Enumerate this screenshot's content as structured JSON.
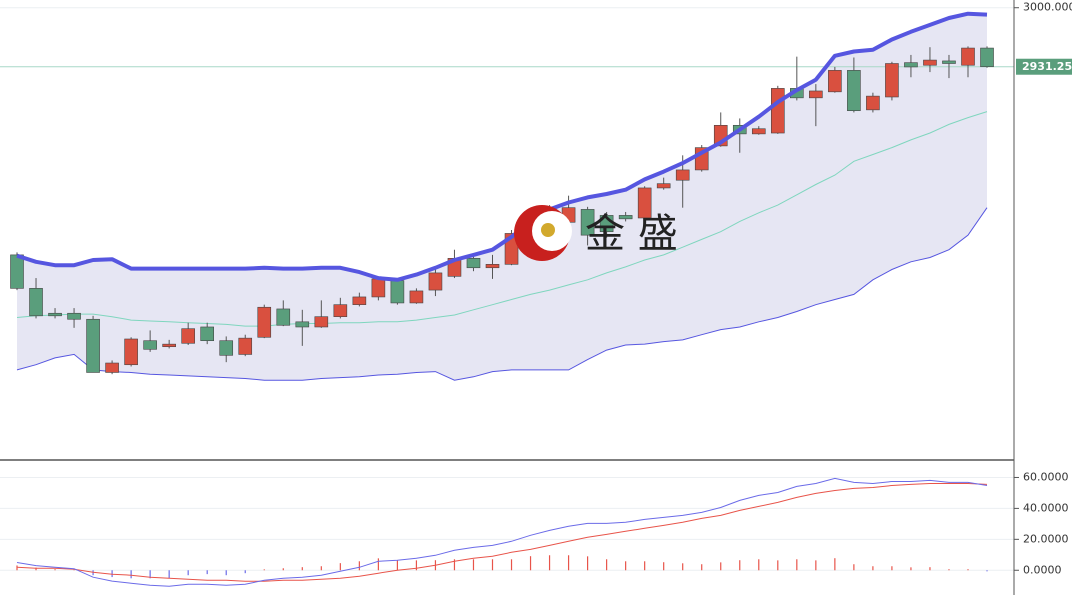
{
  "chart_data": [
    {
      "type": "candlestick",
      "ylim": [
        2473,
        3009
      ],
      "yticks": [
        {
          "value": 3000,
          "label": "3000.0000"
        }
      ],
      "grid": true,
      "up_color": "#d9503f",
      "down_color": "#5a9e7c",
      "open": [
        2712,
        2673,
        2644,
        2644,
        2637,
        2575,
        2584,
        2612,
        2605,
        2609,
        2628,
        2612,
        2596,
        2616,
        2649,
        2634,
        2628,
        2640,
        2654,
        2663,
        2682,
        2656,
        2671,
        2687,
        2708,
        2697,
        2701,
        2737,
        2747,
        2750,
        2765,
        2758,
        2758,
        2755,
        2790,
        2799,
        2811,
        2839,
        2863,
        2853,
        2854,
        2906,
        2895,
        2902,
        2927,
        2881,
        2896,
        2936,
        2933,
        2938,
        2933,
        2953
      ],
      "high": [
        2715,
        2685,
        2650,
        2650,
        2641,
        2589,
        2616,
        2624,
        2613,
        2633,
        2633,
        2617,
        2619,
        2654,
        2659,
        2648,
        2659,
        2662,
        2668,
        2687,
        2685,
        2673,
        2697,
        2718,
        2713,
        2712,
        2741,
        2758,
        2770,
        2781,
        2768,
        2762,
        2762,
        2792,
        2802,
        2828,
        2840,
        2878,
        2871,
        2862,
        2909,
        2943,
        2911,
        2931,
        2942,
        2901,
        2937,
        2945,
        2954,
        2945,
        2955,
        2955
      ],
      "low": [
        2671,
        2638,
        2638,
        2627,
        2575,
        2573,
        2582,
        2599,
        2603,
        2607,
        2608,
        2587,
        2594,
        2615,
        2629,
        2606,
        2627,
        2638,
        2652,
        2659,
        2654,
        2655,
        2664,
        2685,
        2693,
        2684,
        2700,
        2735,
        2743,
        2746,
        2723,
        2732,
        2751,
        2754,
        2788,
        2767,
        2809,
        2838,
        2831,
        2852,
        2853,
        2892,
        2862,
        2901,
        2878,
        2878,
        2892,
        2919,
        2925,
        2918,
        2919,
        2930
      ],
      "close": [
        2673,
        2641,
        2641,
        2637,
        2575,
        2586,
        2614,
        2602,
        2608,
        2626,
        2612,
        2595,
        2615,
        2651,
        2630,
        2628,
        2640,
        2654,
        2663,
        2684,
        2656,
        2670,
        2691,
        2708,
        2697,
        2701,
        2737,
        2753,
        2764,
        2767,
        2735,
        2739,
        2754,
        2790,
        2795,
        2811,
        2837,
        2863,
        2853,
        2859,
        2906,
        2895,
        2903,
        2927,
        2880,
        2897,
        2935,
        2931,
        2939,
        2935,
        2953,
        2931.25
      ],
      "bands": {
        "upper": [
          2711,
          2704,
          2700,
          2700,
          2706,
          2707,
          2696,
          2696,
          2696,
          2696,
          2696,
          2696,
          2696,
          2697,
          2696,
          2696,
          2697,
          2697,
          2692,
          2685,
          2683,
          2689,
          2697,
          2706,
          2712,
          2718,
          2733,
          2751,
          2765,
          2773,
          2779,
          2783,
          2788,
          2800,
          2809,
          2819,
          2831,
          2843,
          2858,
          2873,
          2890,
          2904,
          2916,
          2944,
          2949,
          2951,
          2963,
          2972,
          2980,
          2988,
          2993,
          2992
        ],
        "middle": [
          2639,
          2641,
          2642,
          2643,
          2643,
          2640,
          2636,
          2635,
          2634,
          2633,
          2632,
          2631,
          2629,
          2629,
          2631,
          2632,
          2632,
          2633,
          2633,
          2634,
          2634,
          2636,
          2639,
          2642,
          2648,
          2654,
          2660,
          2666,
          2671,
          2677,
          2683,
          2691,
          2698,
          2706,
          2712,
          2721,
          2730,
          2739,
          2751,
          2761,
          2770,
          2782,
          2794,
          2805,
          2821,
          2829,
          2837,
          2846,
          2854,
          2864,
          2872,
          2879
        ],
        "lower": [
          2578,
          2584,
          2592,
          2596,
          2578,
          2576,
          2575,
          2573,
          2572,
          2571,
          2570,
          2569,
          2568,
          2566,
          2566,
          2566,
          2568,
          2569,
          2570,
          2572,
          2573,
          2575,
          2576,
          2566,
          2570,
          2576,
          2578,
          2578,
          2578,
          2578,
          2590,
          2601,
          2607,
          2608,
          2611,
          2613,
          2619,
          2625,
          2628,
          2634,
          2639,
          2646,
          2654,
          2660,
          2666,
          2683,
          2695,
          2704,
          2709,
          2718,
          2735,
          2767
        ],
        "upper_color": "#5656e0",
        "middle_color": "#7fd6be",
        "lower_color": "#5656e0",
        "fill_color": "#e6e6f3"
      },
      "price_label": {
        "value": 2931.25,
        "label": "2931.2500",
        "color": "#5a9e7c"
      },
      "watermark": "金 盛"
    },
    {
      "type": "macd",
      "ylim": [
        -16,
        70
      ],
      "yticks": [
        {
          "value": 60,
          "label": "60.0000"
        },
        {
          "value": 40,
          "label": "40.0000"
        },
        {
          "value": 20,
          "label": "20.0000"
        },
        {
          "value": 0,
          "label": "0.0000"
        }
      ],
      "grid": true,
      "dif": [
        5,
        3,
        2,
        1,
        -4.5,
        -7,
        -8.4,
        -9.7,
        -10.3,
        -9,
        -9,
        -9.7,
        -9,
        -6.5,
        -5.2,
        -4.5,
        -3.2,
        -0.6,
        1.9,
        5.8,
        6.5,
        7.7,
        9.7,
        12.9,
        14.8,
        16.1,
        18.7,
        22.6,
        25.8,
        28.4,
        30.3,
        30.3,
        31,
        32.9,
        34.2,
        35.5,
        37.4,
        40.6,
        45.2,
        48.4,
        50.3,
        54.2,
        56.1,
        59.4,
        56.8,
        56.1,
        57.4,
        57.4,
        58.1,
        56.8,
        56.8,
        54.8
      ],
      "dea": [
        1.9,
        1.3,
        1.3,
        0.6,
        -1.3,
        -2.6,
        -3.2,
        -4.5,
        -5.2,
        -5.8,
        -6.5,
        -6.5,
        -7.1,
        -7.1,
        -6.5,
        -6.5,
        -5.8,
        -5.2,
        -3.9,
        -1.9,
        0,
        1.3,
        3.2,
        5.8,
        7.7,
        9,
        11.6,
        13.5,
        16.1,
        18.7,
        21.3,
        23.2,
        25.2,
        27.1,
        29,
        31,
        33.5,
        35.5,
        38.7,
        41.3,
        43.9,
        47.1,
        49.7,
        51.6,
        52.9,
        53.5,
        54.8,
        55.5,
        56.1,
        56.1,
        56.1,
        55.5
      ],
      "histogram": [
        3.1,
        1.7,
        0.7,
        0.4,
        -3.2,
        -4.4,
        -5.2,
        -5.2,
        -5.1,
        -3.2,
        -2.5,
        -3.2,
        -1.9,
        0.6,
        1.3,
        2,
        2.6,
        4.6,
        5.8,
        7.7,
        6.5,
        6.4,
        6.5,
        7.1,
        7.1,
        7.1,
        7.1,
        9.1,
        9.7,
        9.7,
        9,
        7.1,
        5.8,
        5.8,
        5.2,
        4.5,
        3.9,
        5.1,
        6.5,
        7.1,
        6.4,
        7.1,
        6.4,
        7.8,
        3.9,
        2.6,
        2.6,
        1.9,
        2,
        0.7,
        0.7,
        -0.7
      ],
      "dif_color": "#6b6be8",
      "dea_color": "#e8544a",
      "up_color": "#e8544a",
      "down_color": "#6b6be8"
    }
  ]
}
